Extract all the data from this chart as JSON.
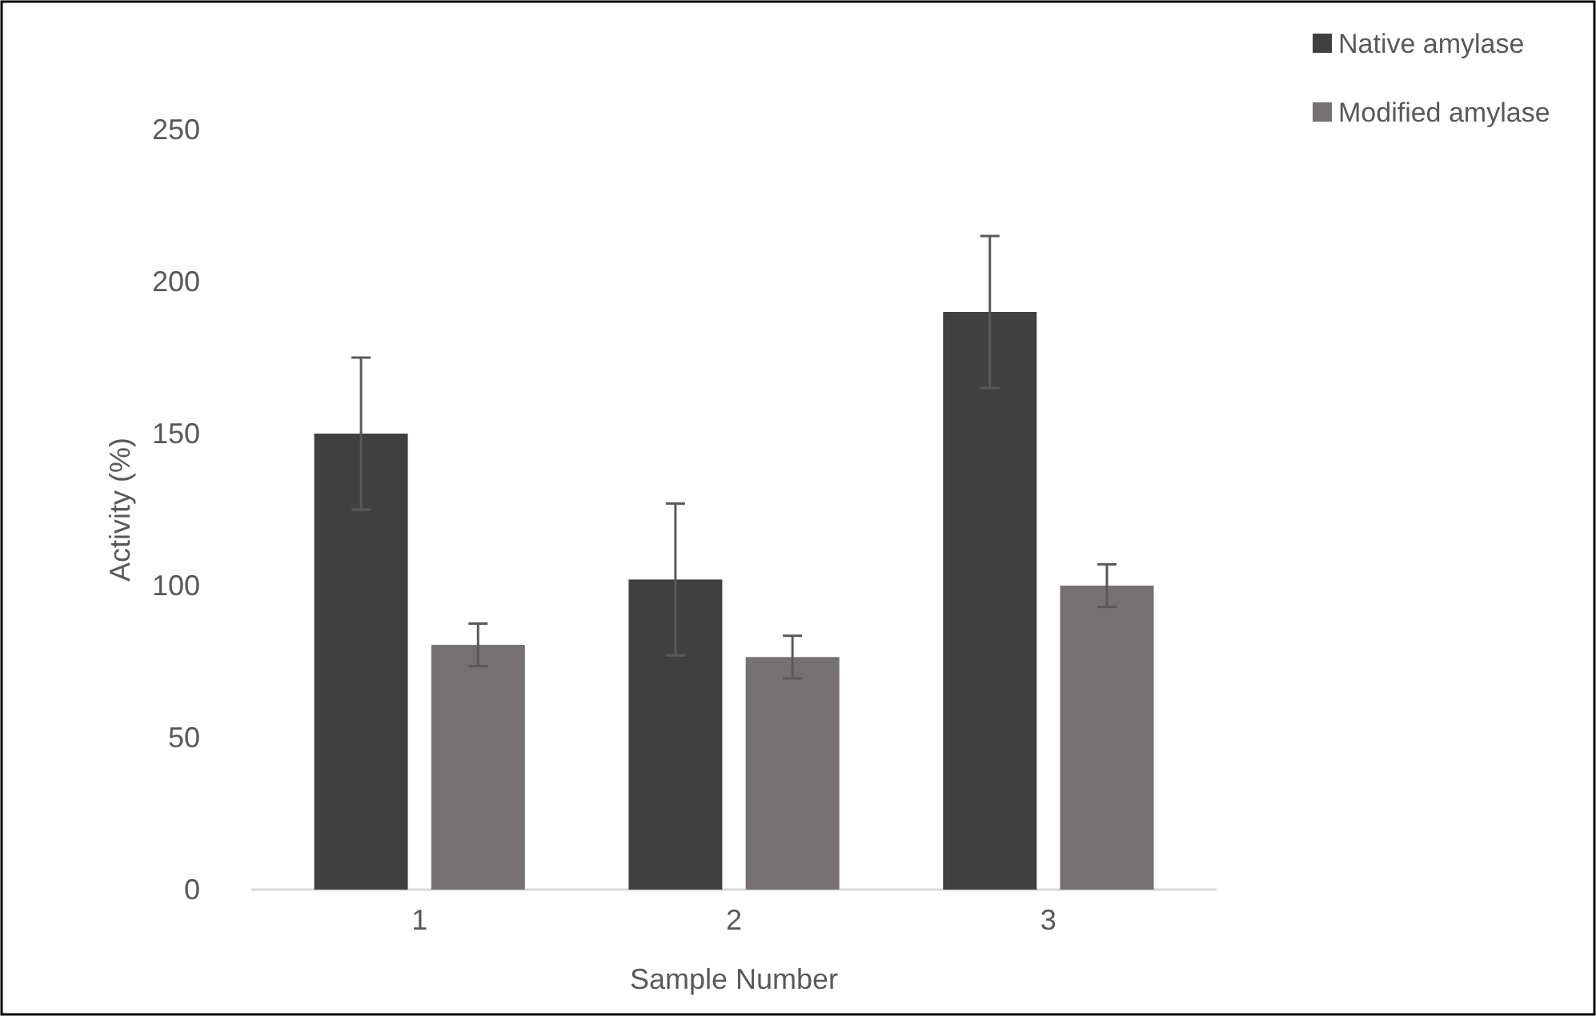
{
  "chart_data": {
    "type": "bar",
    "xlabel": "Sample Number",
    "ylabel": "Activity (%)",
    "categories": [
      "1",
      "2",
      "3"
    ],
    "series": [
      {
        "name": "Native amylase",
        "color": "#404040",
        "values": [
          150,
          102,
          190
        ],
        "errors": [
          25,
          25,
          25
        ]
      },
      {
        "name": "Modified amylase",
        "color": "#767171",
        "values": [
          80.5,
          76.5,
          100
        ],
        "errors": [
          7,
          7,
          7
        ]
      }
    ],
    "ylim": [
      0,
      250
    ],
    "yticks": [
      0,
      50,
      100,
      150,
      200,
      250
    ],
    "grid": false,
    "legend": "top right"
  }
}
